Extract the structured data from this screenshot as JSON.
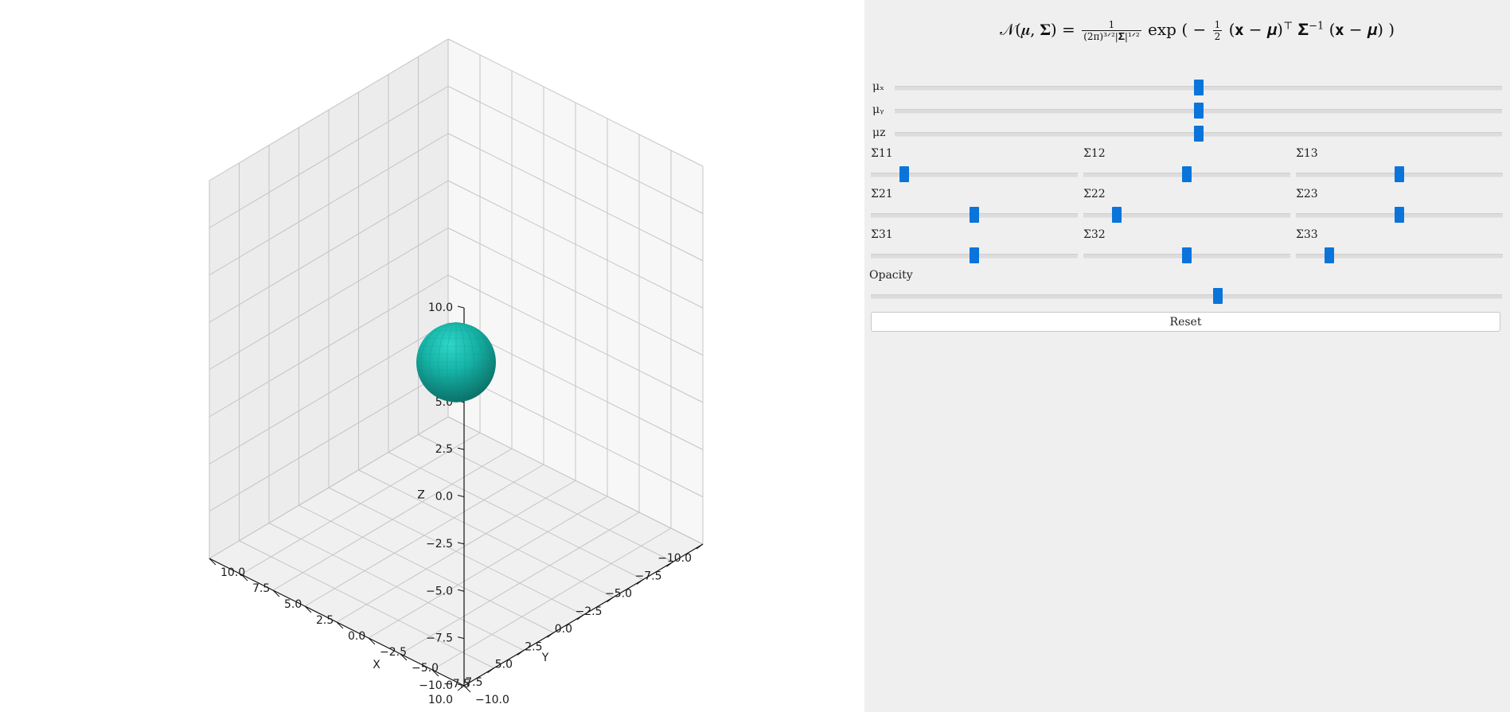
{
  "plot": {
    "axis_labels": {
      "x": "X",
      "y": "Y",
      "z": "Z"
    },
    "x_ticks": [
      "−10.0",
      "−7.5",
      "−5.0",
      "−2.5",
      "0.0",
      "2.5",
      "5.0",
      "7.5",
      "10.0"
    ],
    "y_ticks": [
      "−10.0",
      "−7.5",
      "−5.0",
      "−2.5",
      "0.0",
      "2.5",
      "5.0",
      "7.5",
      "10.0"
    ],
    "z_ticks": [
      "−10.0",
      "−7.5",
      "−5.0",
      "−2.5",
      "0.0",
      "2.5",
      "5.0",
      "7.5",
      "10.0"
    ],
    "xlim": [
      -10,
      10
    ],
    "ylim": [
      -10,
      10
    ],
    "zlim": [
      -10,
      10
    ],
    "grid": true,
    "ellipsoid_color": "#12b3a8"
  },
  "panel": {
    "formula": {
      "lhs": "𝒩(𝝁, 𝚺) =",
      "frac_num": "1",
      "frac_den": "(2π)³ᐟ²|𝚺|¹ᐟ²",
      "exp_text": "exp",
      "paren_open": "(",
      "minus": "−",
      "half_num": "1",
      "half_den": "2",
      "quad_1": "(𝐱 − 𝝁)",
      "transpose": "⊤",
      "sigma": "𝚺",
      "inv": "−1",
      "quad_2": "(𝐱 − 𝝁)",
      "paren_close": ")"
    },
    "sliders": [
      {
        "label": "μₓ",
        "name": "mu-x-slider",
        "value": 0.5
      },
      {
        "label": "μᵧ",
        "name": "mu-y-slider",
        "value": 0.5
      },
      {
        "label": "μz",
        "name": "mu-z-slider",
        "value": 0.5
      },
      {
        "label": "Σ11",
        "name": "sigma-11-slider",
        "value": 0.16
      },
      {
        "label": "Σ12",
        "name": "sigma-12-slider",
        "value": 0.5
      },
      {
        "label": "Σ13",
        "name": "sigma-13-slider",
        "value": 0.5
      },
      {
        "label": "Σ21",
        "name": "sigma-21-slider",
        "value": 0.5
      },
      {
        "label": "Σ22",
        "name": "sigma-22-slider",
        "value": 0.16
      },
      {
        "label": "Σ23",
        "name": "sigma-23-slider",
        "value": 0.5
      },
      {
        "label": "Σ31",
        "name": "sigma-31-slider",
        "value": 0.5
      },
      {
        "label": "Σ32",
        "name": "sigma-32-slider",
        "value": 0.5
      },
      {
        "label": "Σ33",
        "name": "sigma-33-slider",
        "value": 0.16
      },
      {
        "label": "Opacity",
        "name": "opacity-slider",
        "value": 0.55
      }
    ],
    "reset_label": "Reset",
    "accent_color": "#0a74da"
  }
}
